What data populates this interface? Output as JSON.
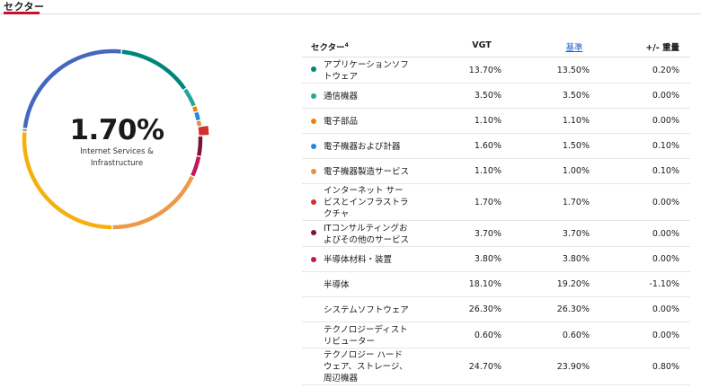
{
  "tab": {
    "label": "セクター"
  },
  "donut": {
    "center_value": "1.70%",
    "center_label_line1": "Internet Services &",
    "center_label_line2": "Infrastructure",
    "highlight_index": 5
  },
  "table": {
    "headers": {
      "sector": "セクター",
      "footnote": "4",
      "vgt": "VGT",
      "bench": "基準",
      "diff": "+/- 重量"
    },
    "rows": [
      {
        "name_lines": [
          "アプリケーションソフ",
          "トウェア"
        ],
        "vgt": "13.70%",
        "bench": "13.50%",
        "diff": "0.20%",
        "color": "#00857b",
        "share": 13.7
      },
      {
        "name_lines": [
          "通信機器"
        ],
        "vgt": "3.50%",
        "bench": "3.50%",
        "diff": "0.00%",
        "color": "#26a69a",
        "share": 3.5
      },
      {
        "name_lines": [
          "電子部品"
        ],
        "vgt": "1.10%",
        "bench": "1.10%",
        "diff": "0.00%",
        "color": "#f57c00",
        "share": 1.1
      },
      {
        "name_lines": [
          "電子機器および計器"
        ],
        "vgt": "1.60%",
        "bench": "1.50%",
        "diff": "0.10%",
        "color": "#1e88e5",
        "share": 1.6
      },
      {
        "name_lines": [
          "電子機器製造サービス"
        ],
        "vgt": "1.10%",
        "bench": "1.00%",
        "diff": "0.10%",
        "color": "#ef8c3a",
        "share": 1.1
      },
      {
        "name_lines": [
          "インターネット サー",
          "ビスとインフラストラ",
          "クチャ"
        ],
        "vgt": "1.70%",
        "bench": "1.70%",
        "diff": "0.00%",
        "color": "#d32f2f",
        "share": 1.7
      },
      {
        "name_lines": [
          "ITコンサルティングお",
          "よびその他のサービス"
        ],
        "vgt": "3.70%",
        "bench": "3.70%",
        "diff": "0.00%",
        "color": "#7b1533",
        "share": 3.7
      },
      {
        "name_lines": [
          "半導体材料・装置"
        ],
        "vgt": "3.80%",
        "bench": "3.80%",
        "diff": "0.00%",
        "color": "#c2185b",
        "share": 3.8
      },
      {
        "name_lines": [
          "半導体"
        ],
        "vgt": "18.10%",
        "bench": "19.20%",
        "diff": "-1.10%",
        "color": "#ec9a48",
        "share": 18.1
      },
      {
        "name_lines": [
          "システムソフトウェア"
        ],
        "vgt": "26.30%",
        "bench": "26.30%",
        "diff": "0.00%",
        "color": "#f6b00e",
        "share": 26.3
      },
      {
        "name_lines": [
          "テクノロジーディスト",
          "リビューター"
        ],
        "vgt": "0.60%",
        "bench": "0.60%",
        "diff": "0.00%",
        "color": "#9e9e9e",
        "share": 0.6
      },
      {
        "name_lines": [
          "テクノロジー ハード",
          "ウェア、ストレージ、",
          "周辺機器"
        ],
        "vgt": "24.70%",
        "bench": "23.90%",
        "diff": "0.80%",
        "color": "#4468c0",
        "share": 24.7
      }
    ]
  }
}
